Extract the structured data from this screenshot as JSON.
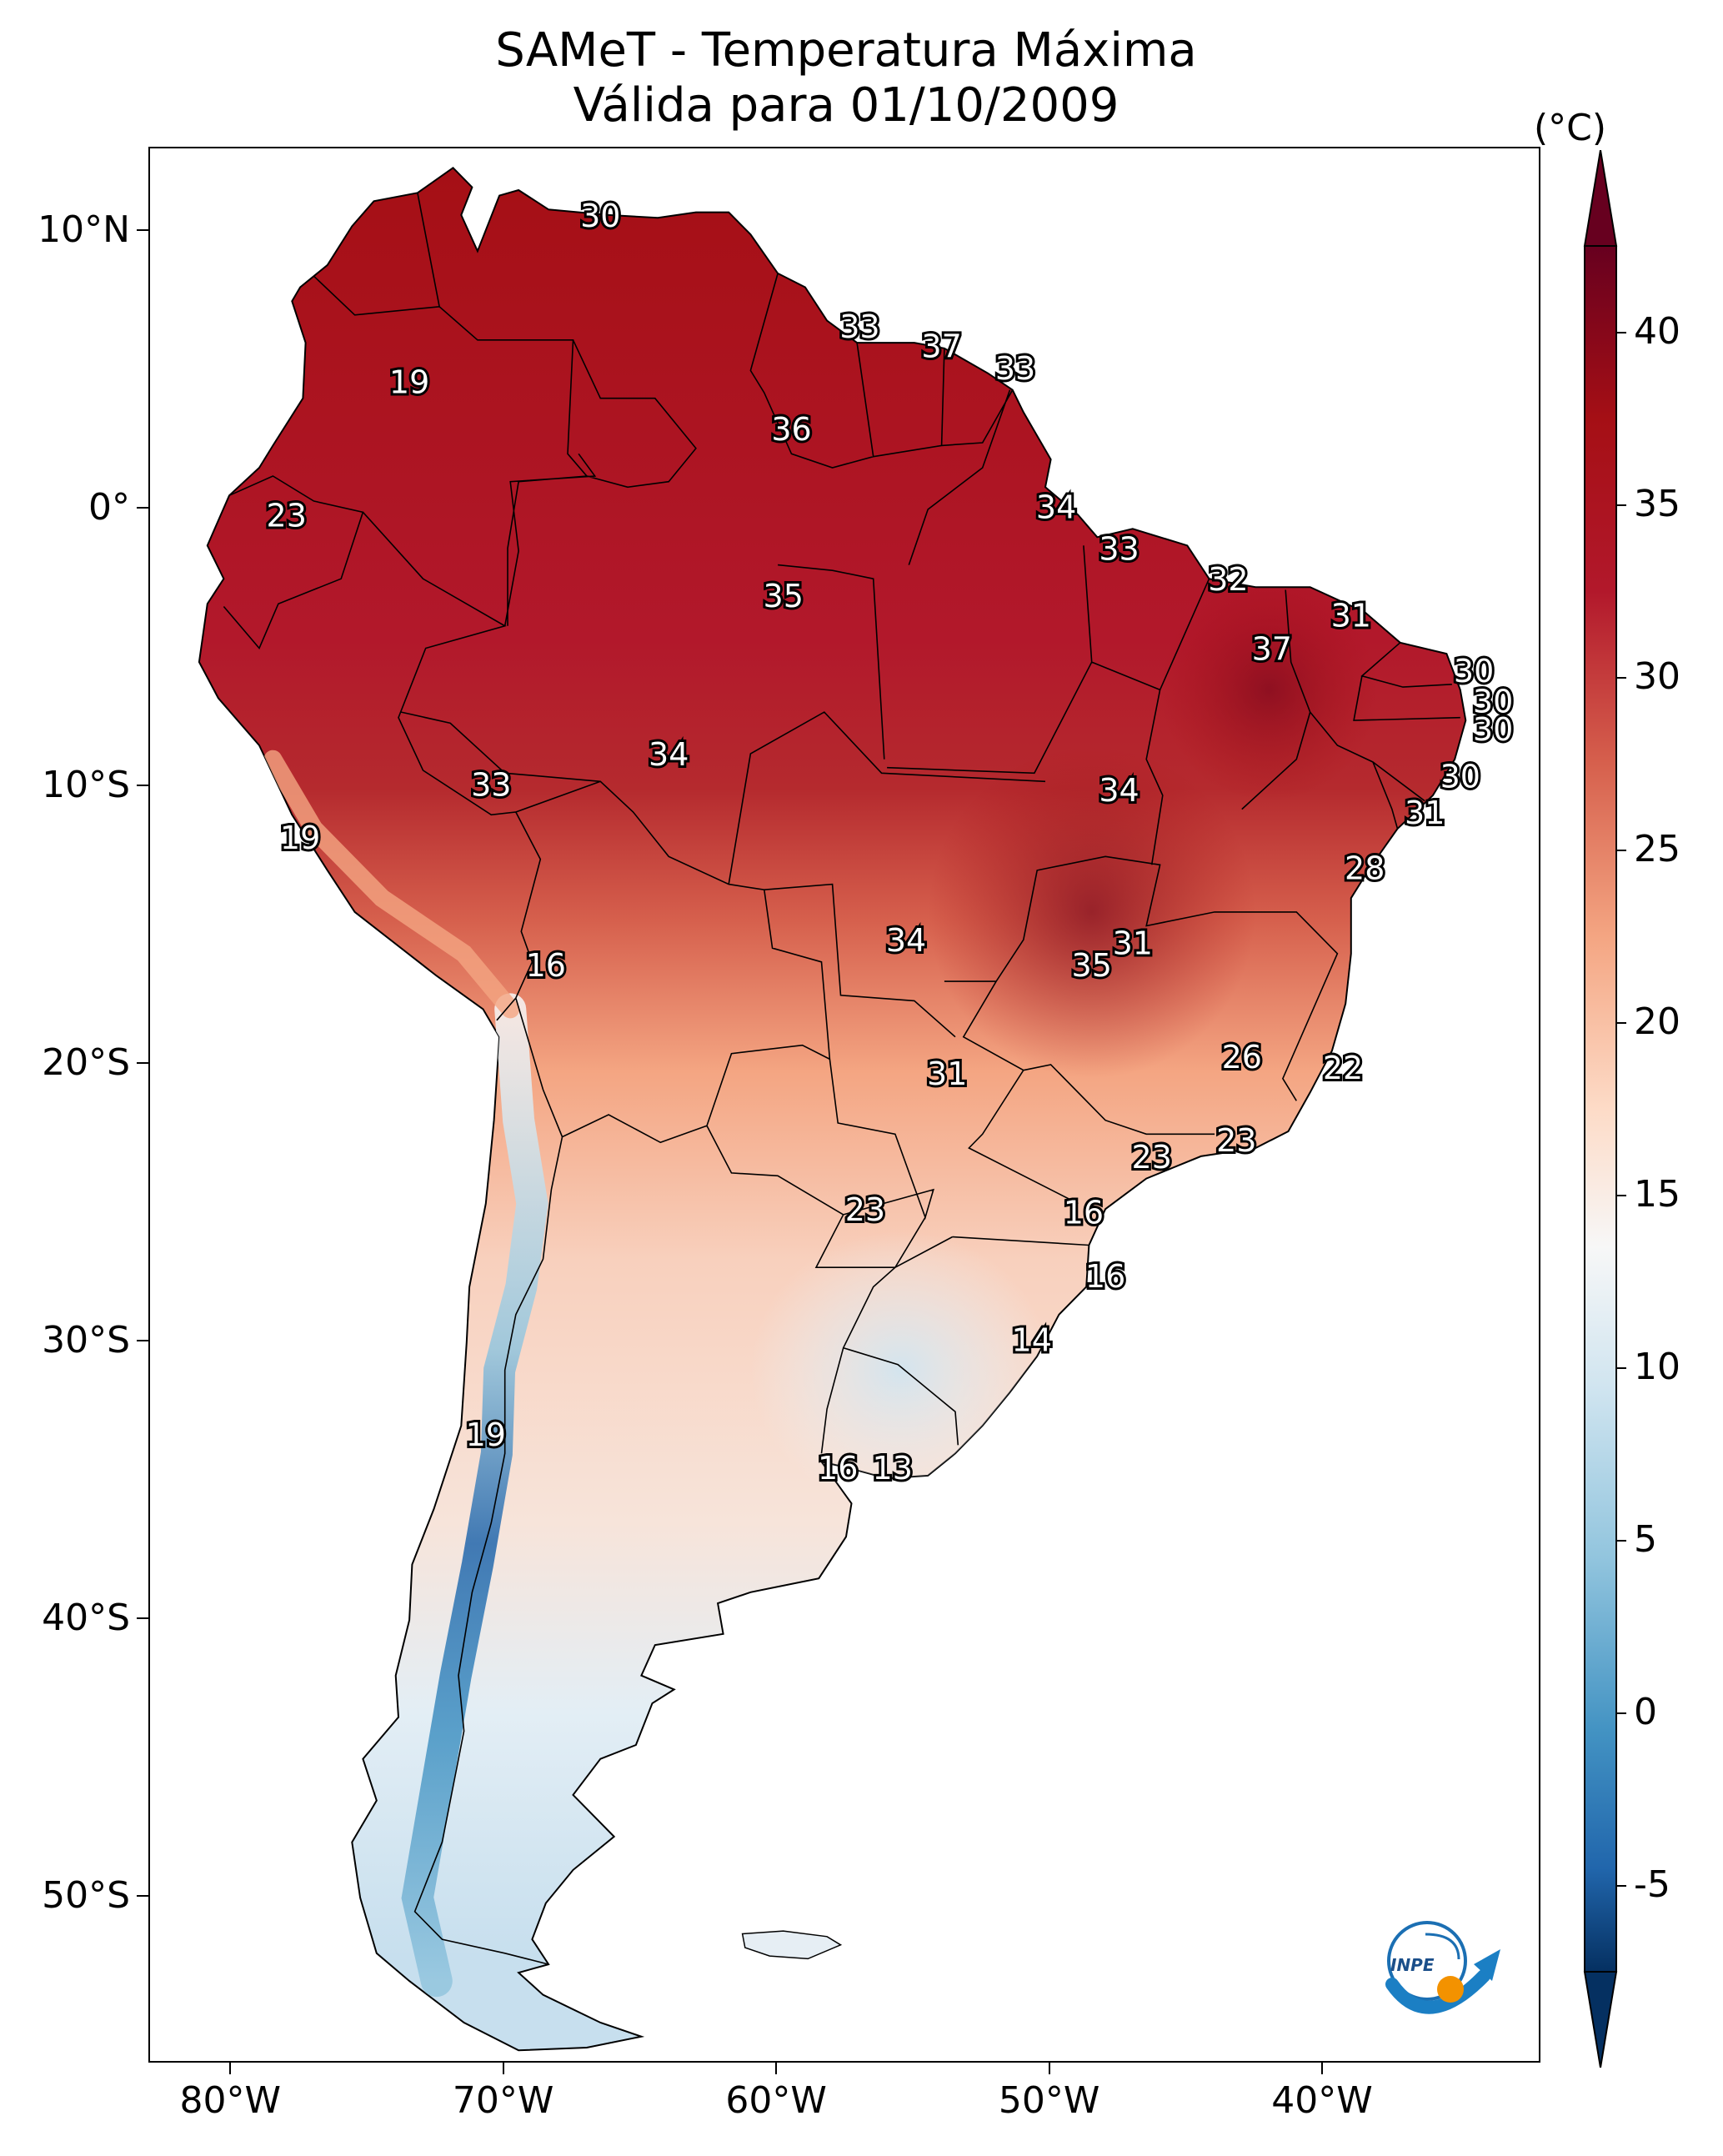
{
  "title": {
    "line1": "SAMeT - Temperatura Máxima",
    "line2": "Válida para 01/10/2009"
  },
  "colorbar": {
    "unit": "(°C)",
    "ticks": [
      "40",
      "35",
      "30",
      "25",
      "20",
      "15",
      "10",
      "5",
      "0",
      "-5"
    ],
    "colors": {
      "hot": "#67001f",
      "warm": "#b2182b",
      "mild": "#f4a582",
      "neutral": "#f7f7f7",
      "cool": "#92c5de",
      "cold": "#2166ac",
      "coldest": "#053061"
    }
  },
  "axes": {
    "lat_labels": [
      "10°N",
      "0°",
      "10°S",
      "20°S",
      "30°S",
      "40°S",
      "50°S"
    ],
    "lon_labels": [
      "80°W",
      "70°W",
      "60°W",
      "50°W",
      "40°W"
    ]
  },
  "contour_labels": [
    {
      "text": "30",
      "lon": -66.5,
      "lat": 10.5
    },
    {
      "text": "19",
      "lon": -73.5,
      "lat": 4.5
    },
    {
      "text": "33",
      "lon": -57.0,
      "lat": 6.5
    },
    {
      "text": "37",
      "lon": -54.0,
      "lat": 5.8
    },
    {
      "text": "33",
      "lon": -51.3,
      "lat": 5.0
    },
    {
      "text": "36",
      "lon": -59.5,
      "lat": 2.8
    },
    {
      "text": "23",
      "lon": -78.0,
      "lat": -0.3
    },
    {
      "text": "34",
      "lon": -49.8,
      "lat": 0.0
    },
    {
      "text": "33",
      "lon": -47.5,
      "lat": -1.5
    },
    {
      "text": "35",
      "lon": -59.8,
      "lat": -3.2
    },
    {
      "text": "32",
      "lon": -43.5,
      "lat": -2.6
    },
    {
      "text": "31",
      "lon": -39.0,
      "lat": -3.9
    },
    {
      "text": "37",
      "lon": -41.9,
      "lat": -5.1
    },
    {
      "text": "30",
      "lon": -34.5,
      "lat": -5.9
    },
    {
      "text": "30",
      "lon": -33.8,
      "lat": -7.0
    },
    {
      "text": "30",
      "lon": -33.8,
      "lat": -8.0
    },
    {
      "text": "34",
      "lon": -64.0,
      "lat": -8.9
    },
    {
      "text": "33",
      "lon": -70.5,
      "lat": -10.0
    },
    {
      "text": "34",
      "lon": -47.5,
      "lat": -10.2
    },
    {
      "text": "30",
      "lon": -35.0,
      "lat": -9.7
    },
    {
      "text": "31",
      "lon": -36.3,
      "lat": -11.0
    },
    {
      "text": "19",
      "lon": -77.5,
      "lat": -11.9
    },
    {
      "text": "28",
      "lon": -38.5,
      "lat": -13.0
    },
    {
      "text": "31",
      "lon": -47.0,
      "lat": -15.7
    },
    {
      "text": "34",
      "lon": -55.3,
      "lat": -15.6
    },
    {
      "text": "35",
      "lon": -48.5,
      "lat": -16.5
    },
    {
      "text": "16",
      "lon": -68.5,
      "lat": -16.5
    },
    {
      "text": "26",
      "lon": -43.0,
      "lat": -19.8
    },
    {
      "text": "22",
      "lon": -39.3,
      "lat": -20.2
    },
    {
      "text": "31",
      "lon": -53.8,
      "lat": -20.4
    },
    {
      "text": "23",
      "lon": -46.3,
      "lat": -23.4
    },
    {
      "text": "23",
      "lon": -43.2,
      "lat": -22.8
    },
    {
      "text": "23",
      "lon": -56.8,
      "lat": -25.3
    },
    {
      "text": "16",
      "lon": -48.8,
      "lat": -25.4
    },
    {
      "text": "16",
      "lon": -48.0,
      "lat": -27.7
    },
    {
      "text": "14",
      "lon": -50.7,
      "lat": -30.0
    },
    {
      "text": "19",
      "lon": -70.7,
      "lat": -33.4
    },
    {
      "text": "16",
      "lon": -57.8,
      "lat": -34.6
    },
    {
      "text": "13",
      "lon": -55.8,
      "lat": -34.6
    }
  ],
  "logo": {
    "text": "INPE"
  }
}
